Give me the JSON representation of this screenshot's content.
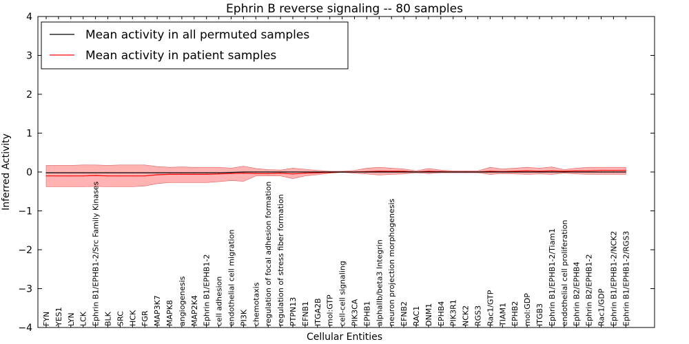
{
  "chart_data": {
    "type": "line",
    "title": "Ephrin B reverse signaling -- 80 samples",
    "xlabel": "Cellular Entities",
    "ylabel": "Inferred Activity",
    "ylim": [
      -4,
      4
    ],
    "yticks": [
      -4,
      -3,
      -2,
      -1,
      0,
      1,
      2,
      3,
      4
    ],
    "grid": false,
    "legend_position": "top-left",
    "categories": [
      "FYN",
      "YES1",
      "LYN",
      "LCK",
      "Ephrin B1/EPHB1-2/Src Family Kinases",
      "BLK",
      "SRC",
      "HCK",
      "FGR",
      "MAP3K7",
      "MAPK8",
      "angiogenesis",
      "MAP2K4",
      "Ephrin B1/EPHB1-2",
      "cell adhesion",
      "endothelial cell migration",
      "PI3K",
      "chemotaxis",
      "regulation of focal adhesion formation",
      "regulation of stress fiber formation",
      "PTPN13",
      "EFNB1",
      "ITGA2B",
      "mol:GTP",
      "cell-cell signaling",
      "PIK3CA",
      "EPHB1",
      "alphaIIb/beta3 Integrin",
      "neuron projection morphogenesis",
      "EFNB2",
      "RAC1",
      "DNM1",
      "EPHB4",
      "PIK3R1",
      "NCK2",
      "RGS3",
      "Rac1/GTP",
      "TIAM1",
      "EPHB2",
      "mol:GDP",
      "ITGB3",
      "Ephrin B1/EPHB1-2/Tiam1",
      "endothelial cell proliferation",
      "Ephrin B2/EPHB4",
      "Ephrin B2/EPHB1-2",
      "Rac1/GDP",
      "Ephrin B1/EPHB1-2/NCK2",
      "Ephrin B1/EPHB1-2/RGS3"
    ],
    "series": [
      {
        "name": "Mean activity in all permuted samples",
        "color": "#000000",
        "values": [
          -0.02,
          -0.02,
          -0.02,
          -0.02,
          -0.02,
          -0.02,
          -0.02,
          -0.02,
          -0.02,
          -0.02,
          -0.02,
          -0.02,
          -0.02,
          -0.02,
          -0.02,
          -0.01,
          0.0,
          0.0,
          0.0,
          0.0,
          0.0,
          0.0,
          0.0,
          0.0,
          0.0,
          0.0,
          0.0,
          0.0,
          0.0,
          0.0,
          0.0,
          0.0,
          0.0,
          0.0,
          0.0,
          0.0,
          0.0,
          0.0,
          0.0,
          0.0,
          0.0,
          0.0,
          0.0,
          0.0,
          0.0,
          0.0,
          0.0,
          0.0
        ]
      },
      {
        "name": "Mean activity in patient samples",
        "color": "#ff0000",
        "values": [
          -0.1,
          -0.1,
          -0.1,
          -0.1,
          -0.09,
          -0.1,
          -0.1,
          -0.1,
          -0.1,
          -0.07,
          -0.06,
          -0.06,
          -0.06,
          -0.06,
          -0.05,
          -0.04,
          -0.03,
          -0.04,
          -0.04,
          -0.03,
          -0.05,
          -0.03,
          -0.02,
          -0.01,
          0.0,
          0.0,
          0.01,
          0.02,
          0.02,
          0.02,
          0.0,
          0.02,
          0.01,
          0.0,
          0.0,
          0.0,
          0.02,
          0.01,
          0.02,
          0.03,
          0.02,
          0.03,
          0.02,
          0.03,
          0.03,
          0.04,
          0.04,
          0.04
        ],
        "band_upper": [
          0.17,
          0.17,
          0.17,
          0.18,
          0.18,
          0.17,
          0.18,
          0.18,
          0.18,
          0.14,
          0.12,
          0.13,
          0.12,
          0.12,
          0.12,
          0.1,
          0.15,
          0.09,
          0.06,
          0.05,
          0.1,
          0.07,
          0.04,
          0.02,
          0.02,
          0.04,
          0.1,
          0.12,
          0.1,
          0.08,
          0.03,
          0.09,
          0.05,
          0.03,
          0.03,
          0.03,
          0.12,
          0.08,
          0.1,
          0.12,
          0.1,
          0.13,
          0.06,
          0.1,
          0.12,
          0.12,
          0.12,
          0.12
        ],
        "band_lower": [
          -0.38,
          -0.38,
          -0.38,
          -0.38,
          -0.37,
          -0.38,
          -0.38,
          -0.38,
          -0.36,
          -0.3,
          -0.27,
          -0.27,
          -0.27,
          -0.27,
          -0.25,
          -0.22,
          -0.24,
          -0.1,
          -0.1,
          -0.1,
          -0.17,
          -0.1,
          -0.07,
          -0.03,
          -0.01,
          -0.03,
          -0.05,
          -0.08,
          -0.06,
          -0.05,
          -0.02,
          -0.04,
          -0.02,
          -0.02,
          -0.02,
          -0.02,
          -0.06,
          -0.04,
          -0.05,
          -0.06,
          -0.05,
          -0.06,
          -0.03,
          -0.05,
          -0.06,
          -0.06,
          -0.06,
          -0.06
        ]
      }
    ],
    "band_color": "#ff9999"
  }
}
